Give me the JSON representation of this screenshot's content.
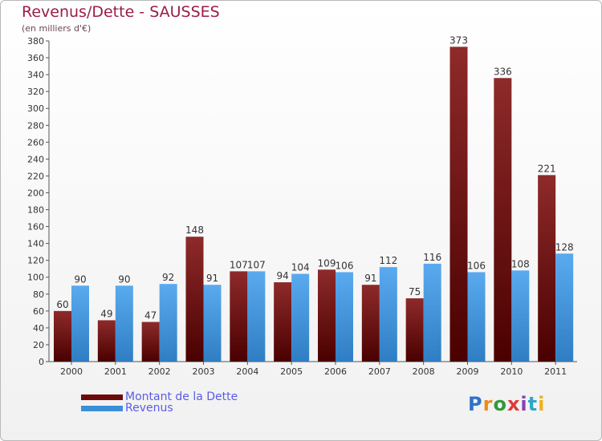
{
  "title": "Revenus/Dette - SAUSSES",
  "subtitle": "(en milliers d'€)",
  "logo": {
    "text": "Proxiti",
    "letters": [
      {
        "ch": "P",
        "color": "#2f73c8"
      },
      {
        "ch": "r",
        "color": "#f08a1c"
      },
      {
        "ch": "o",
        "color": "#2f9a3a"
      },
      {
        "ch": "x",
        "color": "#e03a3a"
      },
      {
        "ch": "i",
        "color": "#8a3fb0"
      },
      {
        "ch": "t",
        "color": "#2fa6c9"
      },
      {
        "ch": "i",
        "color": "#f0b21c"
      }
    ]
  },
  "legend": [
    {
      "label": "Montant de la Dette",
      "color": "#6b0a0a"
    },
    {
      "label": "Revenus",
      "color": "#3a8fd9"
    }
  ],
  "chart_data": {
    "type": "bar",
    "categories": [
      "2000",
      "2001",
      "2002",
      "2003",
      "2004",
      "2005",
      "2006",
      "2007",
      "2008",
      "2009",
      "2010",
      "2011"
    ],
    "series": [
      {
        "name": "Montant de la Dette",
        "color": "#6b0a0a",
        "values": [
          60,
          49,
          47,
          148,
          107,
          94,
          109,
          91,
          75,
          373,
          336,
          221
        ]
      },
      {
        "name": "Revenus",
        "color": "#3a8fd9",
        "values": [
          90,
          90,
          92,
          91,
          107,
          104,
          106,
          112,
          116,
          106,
          108,
          128
        ]
      }
    ],
    "ylim": [
      0,
      380
    ],
    "ytick_step": 20,
    "grid": false,
    "xlabel": "",
    "ylabel": ""
  }
}
